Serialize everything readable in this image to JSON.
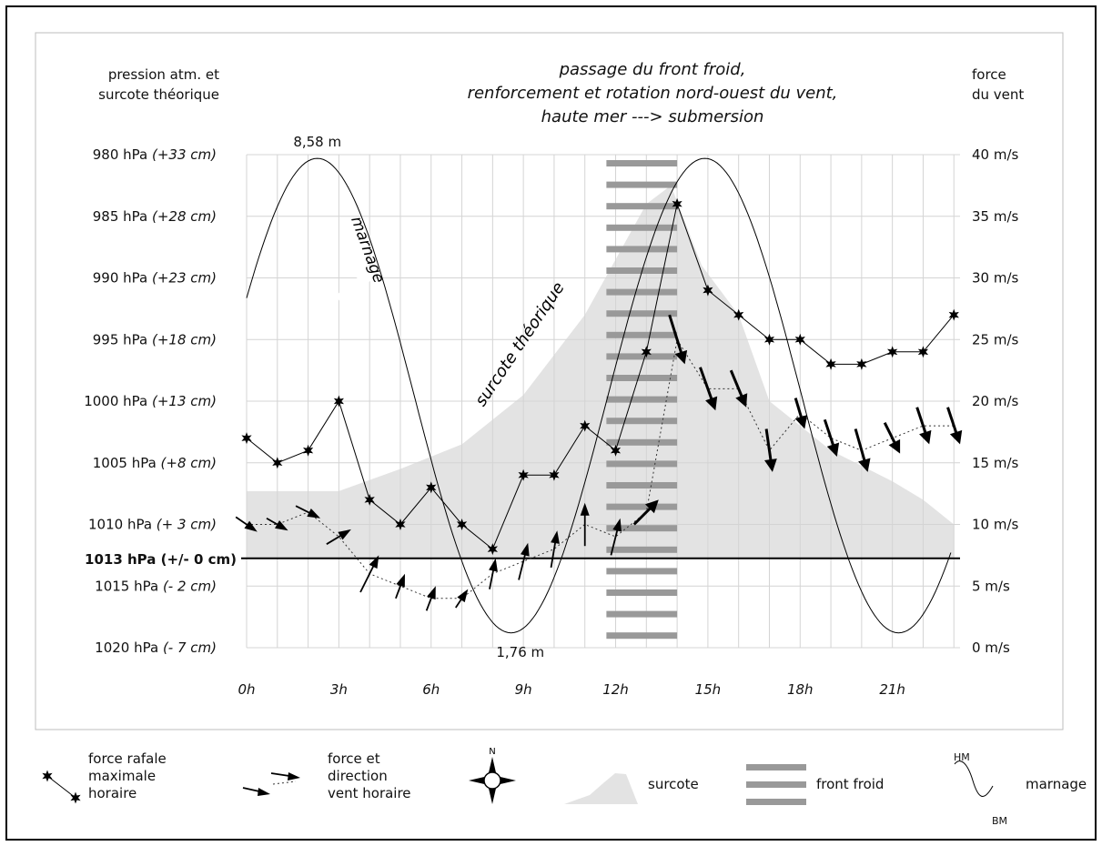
{
  "chart_data": {
    "type": "line",
    "title_lines": [
      "passage du front froid,",
      "renforcement et rotation nord-ouest du vent,",
      "haute mer ---> submersion"
    ],
    "ylabel_left_lines": [
      "pression atm. et",
      "surcote théorique"
    ],
    "ylabel_right_lines": [
      "force",
      "du vent"
    ],
    "left_ticks": [
      {
        "hpa": "980 hPa",
        "cm": "(+33 cm)",
        "wind": 40
      },
      {
        "hpa": "985 hPa",
        "cm": "(+28 cm)",
        "wind": 35
      },
      {
        "hpa": "990 hPa",
        "cm": "(+23 cm)",
        "wind": 30
      },
      {
        "hpa": "995 hPa",
        "cm": "(+18 cm)",
        "wind": 25
      },
      {
        "hpa": "1000 hPa",
        "cm": "(+13 cm)",
        "wind": 20
      },
      {
        "hpa": "1005 hPa",
        "cm": "(+8 cm)",
        "wind": 15
      },
      {
        "hpa": "1010 hPa",
        "cm": "(+ 3 cm)",
        "wind": 10
      },
      {
        "hpa": "1015 hPa",
        "cm": "(- 2 cm)",
        "wind": 5
      },
      {
        "hpa": "1020 hPa",
        "cm": "(- 7 cm)",
        "wind": 0
      }
    ],
    "reference_line": {
      "label": "1013 hPa (+/- 0 cm)",
      "wind": 7.25
    },
    "right_ticks": [
      "40 m/s",
      "35 m/s",
      "30 m/s",
      "25 m/s",
      "20 m/s",
      "15 m/s",
      "10 m/s",
      "5 m/s",
      "0 m/s"
    ],
    "x_ticks": [
      {
        "label": "0h",
        "h": 0
      },
      {
        "label": "3h",
        "h": 3
      },
      {
        "label": "6h",
        "h": 6
      },
      {
        "label": "9h",
        "h": 9
      },
      {
        "label": "12h",
        "h": 12
      },
      {
        "label": "15h",
        "h": 15
      },
      {
        "label": "18h",
        "h": 18
      },
      {
        "label": "21h",
        "h": 21
      }
    ],
    "xlim": [
      0,
      23.2
    ],
    "ylim_wind": [
      0,
      40
    ],
    "series": [
      {
        "name": "force rafale maximale horaire",
        "hours": [
          0,
          1,
          2,
          3,
          4,
          5,
          6,
          7,
          8,
          9,
          10,
          11,
          12,
          13,
          14,
          15,
          16,
          17,
          18,
          19,
          20,
          21,
          22,
          23
        ],
        "values": [
          17,
          15,
          16,
          20,
          12,
          10,
          13,
          10,
          8,
          14,
          14,
          18,
          16,
          24,
          36,
          29,
          27,
          25,
          25,
          23,
          23,
          24,
          24,
          27
        ]
      },
      {
        "name": "force et direction vent horaire",
        "hours": [
          0,
          1,
          2,
          3,
          4,
          5,
          6,
          7,
          8,
          9,
          10,
          11,
          12,
          13,
          14,
          15,
          16,
          17,
          18,
          19,
          20,
          21,
          22,
          23
        ],
        "values": [
          10,
          10,
          11,
          9,
          6,
          5,
          4,
          4,
          6,
          7,
          8,
          10,
          9,
          11,
          25,
          21,
          21,
          16,
          19,
          17,
          16,
          17,
          18,
          18
        ],
        "arrow_dx": [
          0.7,
          0.7,
          0.8,
          0.8,
          0.6,
          0.3,
          0.3,
          0.4,
          0.2,
          0.3,
          0.2,
          0,
          0.3,
          0.8,
          0.5,
          0.5,
          0.5,
          0.2,
          0.3,
          0.4,
          0.4,
          0.5,
          0.4,
          0.4
        ],
        "arrow_dy": [
          -1.2,
          -1,
          -1,
          1.2,
          3,
          2,
          2,
          1.5,
          2.5,
          3,
          3,
          3.5,
          3,
          2,
          -4,
          -3.5,
          -3,
          -3.5,
          -2.5,
          -3,
          -3.5,
          -2.5,
          -3,
          -3
        ]
      },
      {
        "name": "surcote",
        "hours": [
          0,
          3,
          5,
          7,
          9,
          11,
          12,
          13,
          13.8,
          14.8,
          16,
          17,
          19,
          21,
          22,
          23
        ],
        "values": [
          12.7,
          12.7,
          14.5,
          16.5,
          20.5,
          27,
          31.5,
          36,
          37.5,
          31,
          27,
          20,
          16,
          13.5,
          12,
          10
        ]
      },
      {
        "name": "marnage",
        "amplitude_labels": [
          "8,58 m",
          "1,76 m"
        ],
        "highs_h": [
          2.3,
          14.7
        ],
        "lows_h": [
          8.6,
          21
        ],
        "hm_wind": 39.7,
        "bm_wind": 1.2
      }
    ],
    "front_froid_hours": [
      11.7,
      14.0
    ],
    "annotations": [
      "marnage",
      "surcote théorique"
    ],
    "colors": {
      "surcote": "#e3e3e3",
      "front": "#999999",
      "lines": "#000000",
      "grid": "#d4d4d4"
    }
  },
  "legend": {
    "gust": [
      "force rafale",
      "maximale",
      "horaire"
    ],
    "wind": [
      "force et",
      "direction",
      "vent horaire"
    ],
    "compass_n": "N",
    "surcote": "surcote",
    "front": "front froid",
    "marnage": "marnage",
    "hm": "HM",
    "bm": "BM"
  }
}
